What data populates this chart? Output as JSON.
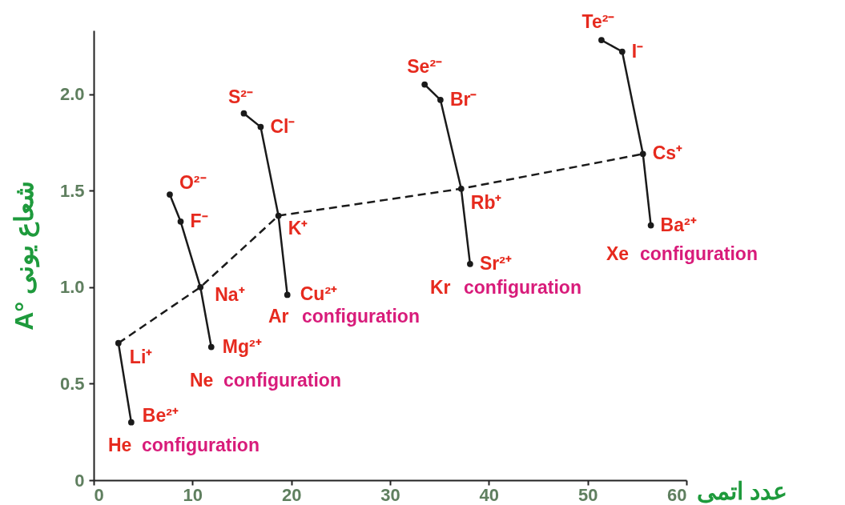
{
  "chart_data": {
    "type": "line",
    "xlabel": "عدد اتمی",
    "ylabel": "A° شعاع یونی",
    "xlim": [
      0,
      60
    ],
    "xticks": [
      0,
      10,
      20,
      30,
      40,
      50,
      60
    ],
    "ylim": [
      0,
      2.33
    ],
    "yticks": [
      0,
      {
        "value": 0.5,
        "label": "0.5"
      },
      {
        "value": 1,
        "label": "1.0"
      },
      {
        "value": 1.5,
        "label": "1.5"
      },
      {
        "value": 2,
        "label": "2.0"
      }
    ],
    "grid": false,
    "series": [
      {
        "color": "#1a1a1a",
        "line_style": "solid",
        "marker": "circle",
        "x": [
          2.5,
          3.8
        ],
        "values": [
          0.71,
          0.3
        ],
        "value_labels": [
          "Li⁺",
          "Be²⁺"
        ]
      },
      {
        "color": "#1a1a1a",
        "line_style": "solid",
        "marker": "circle",
        "x": [
          7.7,
          8.8,
          10.8,
          11.9
        ],
        "values": [
          1.48,
          1.34,
          1.0,
          0.69
        ],
        "value_labels": [
          "O²⁻",
          "F⁻",
          "Na⁺",
          "Mg²⁺"
        ]
      },
      {
        "color": "#1a1a1a",
        "line_style": "solid",
        "marker": "circle",
        "x": [
          15.2,
          16.9,
          18.7,
          19.6
        ],
        "values": [
          1.9,
          1.83,
          1.37,
          0.96
        ],
        "value_labels": [
          "S²⁻",
          "Cl⁻",
          "K⁺",
          "Cu²⁺"
        ]
      },
      {
        "color": "#1a1a1a",
        "line_style": "solid",
        "marker": "circle",
        "x": [
          33.5,
          35.1,
          37.2,
          38.1
        ],
        "values": [
          2.05,
          1.97,
          1.51,
          1.12
        ],
        "value_labels": [
          "Se²⁻",
          "Br⁻",
          "Rb⁺",
          "Sr²⁺"
        ]
      },
      {
        "color": "#1a1a1a",
        "line_style": "solid",
        "marker": "circle",
        "x": [
          51.4,
          53.5,
          55.6,
          56.4
        ],
        "values": [
          2.28,
          2.22,
          1.69,
          1.32
        ],
        "value_labels": [
          "Te²⁻",
          "I⁻",
          "Cs⁺",
          "Ba²⁺"
        ]
      },
      {
        "color": "#1a1a1a",
        "line_style": "dashed",
        "marker": "none",
        "x": [
          2.5,
          10.8,
          18.7,
          37.2,
          55.6
        ],
        "values": [
          0.71,
          1.0,
          1.37,
          1.51,
          1.69
        ]
      }
    ],
    "annotations": [
      "He configuration",
      "Ne configuration",
      "Ar configuration",
      "Kr configuration",
      "Xe configuration"
    ]
  }
}
